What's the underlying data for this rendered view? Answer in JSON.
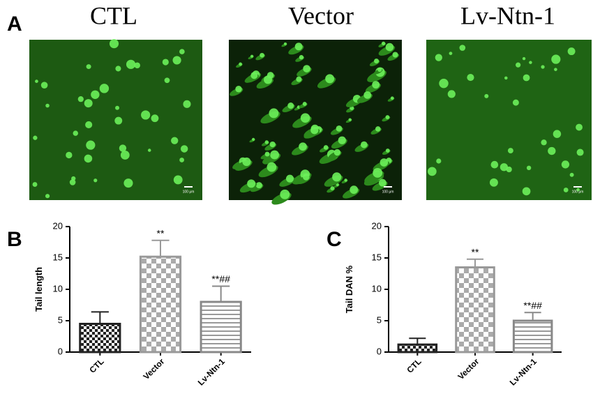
{
  "panel_a": {
    "label": "A",
    "images": [
      {
        "title": "CTL",
        "scale_bar": "100 μm"
      },
      {
        "title": "Vector",
        "scale_bar": "100 μm"
      },
      {
        "title": "Lv-Ntn-1",
        "scale_bar": "100 μm"
      }
    ]
  },
  "chart_data": [
    {
      "type": "bar",
      "panel_label": "B",
      "y_label": "Tail length",
      "categories": [
        "CTL",
        "Vector",
        "Lv-Ntn-1"
      ],
      "values": [
        4.5,
        15.2,
        8.0
      ],
      "errors": [
        1.9,
        2.6,
        2.5
      ],
      "annotations": [
        null,
        "**",
        "**##"
      ],
      "colors": [
        "#222222",
        "#999999",
        "#888888"
      ],
      "ylim": [
        0,
        20
      ],
      "yticks": [
        0,
        5,
        10,
        15,
        20
      ]
    },
    {
      "type": "bar",
      "panel_label": "C",
      "y_label": "Tail DAN %",
      "categories": [
        "CTL",
        "Vector",
        "Lv-Ntn-1"
      ],
      "values": [
        1.2,
        13.5,
        5.0
      ],
      "errors": [
        1.0,
        1.3,
        1.3
      ],
      "annotations": [
        null,
        "**",
        "**##"
      ],
      "colors": [
        "#222222",
        "#999999",
        "#888888"
      ],
      "ylim": [
        0,
        20
      ],
      "yticks": [
        0,
        5,
        10,
        15,
        20
      ]
    }
  ]
}
